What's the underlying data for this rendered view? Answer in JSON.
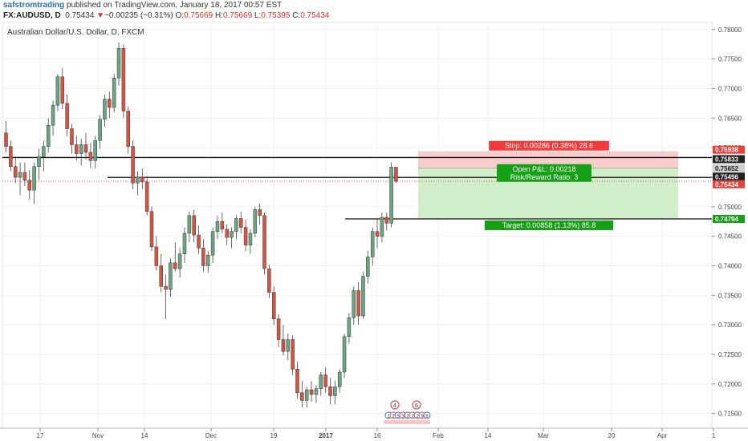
{
  "header": {
    "author": "safstromtrading",
    "published": " published on TradingView.com, January 18, 2017 00:57 EST",
    "symbol": "FX:AUDUSD, D",
    "last": "0.75434",
    "change_arrow": "▼",
    "change": "−0.00235 (−0.31%)",
    "o_label": "O:",
    "o_value": "0.75669",
    "h_label": "H:",
    "h_value": "0.75669",
    "l_label": "L:",
    "l_value": "0.75395",
    "c_label": "C:",
    "c_value": "0.75434"
  },
  "colors": {
    "up": "#6ba583",
    "down": "#d75442",
    "stop_zone": "#f8c7c7",
    "target_zone": "#ccecc4",
    "stop_label_bg": "#f23a3a",
    "target_label_bg": "#16a016",
    "grid": "#eef0f3",
    "price_line": "#e05555"
  },
  "chart_data": {
    "type": "candlestick",
    "title": "Australian Dollar/U.S. Dollar, D, FXCM",
    "ylim": [
      0.7125,
      0.7812
    ],
    "y_ticks": [
      "0.78000",
      "0.77500",
      "0.77000",
      "0.76500",
      "0.76000",
      "0.75500",
      "0.75000",
      "0.74500",
      "0.74000",
      "0.73500",
      "0.73000",
      "0.72500",
      "0.72000",
      "0.71500"
    ],
    "x_ticks": [
      "17",
      "Nov",
      "14",
      "Dec",
      "19",
      "2017",
      "16",
      "Feb",
      "14",
      "Mar",
      "20",
      "Apr",
      "1"
    ],
    "candles": [
      {
        "o": 0.7625,
        "h": 0.7645,
        "l": 0.7592,
        "c": 0.7602
      },
      {
        "o": 0.7602,
        "h": 0.7612,
        "l": 0.756,
        "c": 0.7568
      },
      {
        "o": 0.7568,
        "h": 0.7585,
        "l": 0.754,
        "c": 0.755
      },
      {
        "o": 0.755,
        "h": 0.7575,
        "l": 0.752,
        "c": 0.7558
      },
      {
        "o": 0.7558,
        "h": 0.7575,
        "l": 0.7535,
        "c": 0.7545
      },
      {
        "o": 0.7545,
        "h": 0.7562,
        "l": 0.7512,
        "c": 0.7528
      },
      {
        "o": 0.7528,
        "h": 0.7575,
        "l": 0.7505,
        "c": 0.7568
      },
      {
        "o": 0.7568,
        "h": 0.7598,
        "l": 0.7545,
        "c": 0.7585
      },
      {
        "o": 0.7585,
        "h": 0.7612,
        "l": 0.756,
        "c": 0.7602
      },
      {
        "o": 0.7602,
        "h": 0.765,
        "l": 0.7592,
        "c": 0.7638
      },
      {
        "o": 0.7638,
        "h": 0.768,
        "l": 0.762,
        "c": 0.7672
      },
      {
        "o": 0.7672,
        "h": 0.7725,
        "l": 0.7662,
        "c": 0.772
      },
      {
        "o": 0.772,
        "h": 0.7735,
        "l": 0.7665,
        "c": 0.7675
      },
      {
        "o": 0.7675,
        "h": 0.769,
        "l": 0.762,
        "c": 0.7632
      },
      {
        "o": 0.7632,
        "h": 0.764,
        "l": 0.759,
        "c": 0.7605
      },
      {
        "o": 0.7605,
        "h": 0.762,
        "l": 0.7578,
        "c": 0.759
      },
      {
        "o": 0.759,
        "h": 0.7615,
        "l": 0.757,
        "c": 0.7605
      },
      {
        "o": 0.7605,
        "h": 0.7625,
        "l": 0.758,
        "c": 0.7592
      },
      {
        "o": 0.7592,
        "h": 0.7608,
        "l": 0.7565,
        "c": 0.7578
      },
      {
        "o": 0.7578,
        "h": 0.762,
        "l": 0.7565,
        "c": 0.7612
      },
      {
        "o": 0.7612,
        "h": 0.7655,
        "l": 0.7598,
        "c": 0.7648
      },
      {
        "o": 0.7648,
        "h": 0.769,
        "l": 0.7635,
        "c": 0.7682
      },
      {
        "o": 0.7682,
        "h": 0.7695,
        "l": 0.765,
        "c": 0.7668
      },
      {
        "o": 0.7668,
        "h": 0.7725,
        "l": 0.766,
        "c": 0.7718
      },
      {
        "o": 0.7718,
        "h": 0.7778,
        "l": 0.7705,
        "c": 0.7768
      },
      {
        "o": 0.7768,
        "h": 0.7775,
        "l": 0.765,
        "c": 0.7662
      },
      {
        "o": 0.7662,
        "h": 0.767,
        "l": 0.759,
        "c": 0.7602
      },
      {
        "o": 0.7602,
        "h": 0.7612,
        "l": 0.753,
        "c": 0.754
      },
      {
        "o": 0.754,
        "h": 0.756,
        "l": 0.752,
        "c": 0.755
      },
      {
        "o": 0.755,
        "h": 0.7565,
        "l": 0.753,
        "c": 0.7542
      },
      {
        "o": 0.7542,
        "h": 0.7552,
        "l": 0.7485,
        "c": 0.7492
      },
      {
        "o": 0.7492,
        "h": 0.75,
        "l": 0.7425,
        "c": 0.7432
      },
      {
        "o": 0.7432,
        "h": 0.745,
        "l": 0.7392,
        "c": 0.74
      },
      {
        "o": 0.74,
        "h": 0.742,
        "l": 0.7355,
        "c": 0.7365
      },
      {
        "o": 0.7365,
        "h": 0.7385,
        "l": 0.731,
        "c": 0.736
      },
      {
        "o": 0.736,
        "h": 0.7412,
        "l": 0.7348,
        "c": 0.7405
      },
      {
        "o": 0.7405,
        "h": 0.744,
        "l": 0.739,
        "c": 0.7395
      },
      {
        "o": 0.7395,
        "h": 0.743,
        "l": 0.738,
        "c": 0.742
      },
      {
        "o": 0.742,
        "h": 0.7465,
        "l": 0.7405,
        "c": 0.7455
      },
      {
        "o": 0.7455,
        "h": 0.7492,
        "l": 0.744,
        "c": 0.7485
      },
      {
        "o": 0.7485,
        "h": 0.7495,
        "l": 0.744,
        "c": 0.7452
      },
      {
        "o": 0.7452,
        "h": 0.7468,
        "l": 0.742,
        "c": 0.743
      },
      {
        "o": 0.743,
        "h": 0.7445,
        "l": 0.739,
        "c": 0.74
      },
      {
        "o": 0.74,
        "h": 0.7425,
        "l": 0.7388,
        "c": 0.7418
      },
      {
        "o": 0.7418,
        "h": 0.7465,
        "l": 0.7405,
        "c": 0.7458
      },
      {
        "o": 0.7458,
        "h": 0.7485,
        "l": 0.7445,
        "c": 0.7475
      },
      {
        "o": 0.7475,
        "h": 0.749,
        "l": 0.7455,
        "c": 0.7462
      },
      {
        "o": 0.7462,
        "h": 0.747,
        "l": 0.7435,
        "c": 0.7448
      },
      {
        "o": 0.7448,
        "h": 0.7465,
        "l": 0.743,
        "c": 0.7458
      },
      {
        "o": 0.7458,
        "h": 0.7485,
        "l": 0.7445,
        "c": 0.748
      },
      {
        "o": 0.748,
        "h": 0.7492,
        "l": 0.7455,
        "c": 0.7465
      },
      {
        "o": 0.7465,
        "h": 0.7478,
        "l": 0.7425,
        "c": 0.7435
      },
      {
        "o": 0.7435,
        "h": 0.7462,
        "l": 0.742,
        "c": 0.7455
      },
      {
        "o": 0.7455,
        "h": 0.75,
        "l": 0.7448,
        "c": 0.7495
      },
      {
        "o": 0.7495,
        "h": 0.7505,
        "l": 0.747,
        "c": 0.7485
      },
      {
        "o": 0.7485,
        "h": 0.749,
        "l": 0.7385,
        "c": 0.7395
      },
      {
        "o": 0.7395,
        "h": 0.7402,
        "l": 0.7345,
        "c": 0.7355
      },
      {
        "o": 0.7355,
        "h": 0.7365,
        "l": 0.73,
        "c": 0.731
      },
      {
        "o": 0.731,
        "h": 0.7318,
        "l": 0.7262,
        "c": 0.7275
      },
      {
        "o": 0.7275,
        "h": 0.73,
        "l": 0.7248,
        "c": 0.7255
      },
      {
        "o": 0.7255,
        "h": 0.7285,
        "l": 0.724,
        "c": 0.7275
      },
      {
        "o": 0.7275,
        "h": 0.7282,
        "l": 0.7215,
        "c": 0.7225
      },
      {
        "o": 0.7225,
        "h": 0.7238,
        "l": 0.7175,
        "c": 0.7185
      },
      {
        "o": 0.7185,
        "h": 0.7205,
        "l": 0.716,
        "c": 0.7172
      },
      {
        "o": 0.7172,
        "h": 0.7195,
        "l": 0.716,
        "c": 0.719
      },
      {
        "o": 0.719,
        "h": 0.7205,
        "l": 0.717,
        "c": 0.7182
      },
      {
        "o": 0.7182,
        "h": 0.7198,
        "l": 0.7168,
        "c": 0.7192
      },
      {
        "o": 0.7192,
        "h": 0.722,
        "l": 0.718,
        "c": 0.7215
      },
      {
        "o": 0.7215,
        "h": 0.7228,
        "l": 0.7185,
        "c": 0.7195
      },
      {
        "o": 0.7195,
        "h": 0.721,
        "l": 0.7165,
        "c": 0.718
      },
      {
        "o": 0.718,
        "h": 0.7205,
        "l": 0.7165,
        "c": 0.7195
      },
      {
        "o": 0.7195,
        "h": 0.7225,
        "l": 0.7185,
        "c": 0.722
      },
      {
        "o": 0.722,
        "h": 0.7285,
        "l": 0.721,
        "c": 0.728
      },
      {
        "o": 0.728,
        "h": 0.732,
        "l": 0.7268,
        "c": 0.7312
      },
      {
        "o": 0.7312,
        "h": 0.7365,
        "l": 0.73,
        "c": 0.7358
      },
      {
        "o": 0.7358,
        "h": 0.7372,
        "l": 0.73,
        "c": 0.7315
      },
      {
        "o": 0.7315,
        "h": 0.739,
        "l": 0.731,
        "c": 0.7382
      },
      {
        "o": 0.7382,
        "h": 0.7425,
        "l": 0.737,
        "c": 0.7415
      },
      {
        "o": 0.7415,
        "h": 0.7465,
        "l": 0.74,
        "c": 0.7458
      },
      {
        "o": 0.7458,
        "h": 0.7478,
        "l": 0.743,
        "c": 0.745
      },
      {
        "o": 0.745,
        "h": 0.749,
        "l": 0.744,
        "c": 0.7482
      },
      {
        "o": 0.7482,
        "h": 0.749,
        "l": 0.746,
        "c": 0.7472
      },
      {
        "o": 0.7472,
        "h": 0.7575,
        "l": 0.7465,
        "c": 0.7567
      },
      {
        "o": 0.7567,
        "h": 0.7567,
        "l": 0.754,
        "c": 0.7543
      }
    ],
    "levels": [
      {
        "price": 0.75833,
        "label": "0.75833"
      },
      {
        "price": 0.75496,
        "label": "0.75496"
      },
      {
        "price": 0.74794,
        "label": "0.74794"
      }
    ],
    "position": {
      "entry": 0.75652,
      "stop": 0.75938,
      "target": 0.74794,
      "stop_text": "Stop: 0.00286 (0.38%) 28.6",
      "pl_text": "Open P&L: 0.00218",
      "rr_text": "Risk/Reward Ratio: 3",
      "target_text": "Target: 0.00858 (1.13%) 85.8"
    },
    "price_tags": [
      {
        "label": "0.75938",
        "price": 0.75938,
        "bg": "#e8443b",
        "fg": "#ffffff"
      },
      {
        "label": "0.75833",
        "price": 0.75833,
        "bg": "#222222",
        "fg": "#ffffff"
      },
      {
        "label": "0.75652",
        "price": 0.75652,
        "bg": "#cfcfcf",
        "fg": "#222222"
      },
      {
        "label": "0.75496",
        "price": 0.75496,
        "bg": "#222222",
        "fg": "#ffffff"
      },
      {
        "label": "0.75434",
        "price": 0.75434,
        "bg": "#e8443b",
        "fg": "#ffffff"
      },
      {
        "label": "0.74794",
        "price": 0.74794,
        "bg": "#16a016",
        "fg": "#ffffff"
      }
    ],
    "event_markers": [
      "4",
      "6",
      "1",
      "2",
      "5",
      "3",
      "2",
      "2",
      "2",
      "9",
      "8"
    ]
  }
}
